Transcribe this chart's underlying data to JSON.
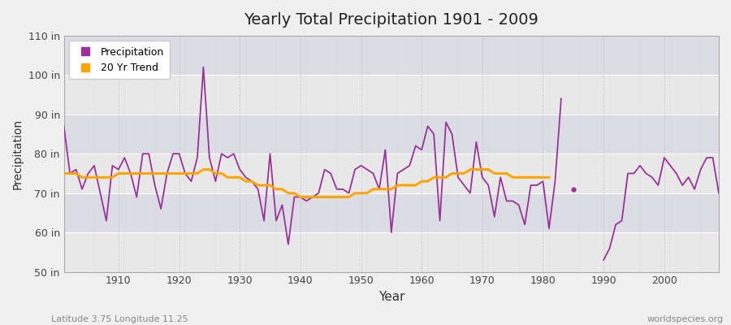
{
  "title": "Yearly Total Precipitation 1901 - 2009",
  "xlabel": "Year",
  "ylabel": "Precipitation",
  "bottom_left_label": "Latitude 3.75 Longitude 11.25",
  "bottom_right_label": "worldspecies.org",
  "years": [
    1901,
    1902,
    1903,
    1904,
    1905,
    1906,
    1907,
    1908,
    1909,
    1910,
    1911,
    1912,
    1913,
    1914,
    1915,
    1916,
    1917,
    1918,
    1919,
    1920,
    1921,
    1922,
    1923,
    1924,
    1925,
    1926,
    1927,
    1928,
    1929,
    1930,
    1931,
    1932,
    1933,
    1934,
    1935,
    1936,
    1937,
    1938,
    1939,
    1940,
    1941,
    1942,
    1943,
    1944,
    1945,
    1946,
    1947,
    1948,
    1949,
    1950,
    1951,
    1952,
    1953,
    1954,
    1955,
    1956,
    1957,
    1958,
    1959,
    1960,
    1961,
    1962,
    1963,
    1964,
    1965,
    1966,
    1967,
    1968,
    1969,
    1970,
    1971,
    1972,
    1973,
    1974,
    1975,
    1976,
    1977,
    1978,
    1979,
    1980,
    1981,
    1982,
    1983,
    1984,
    1985,
    1986,
    1987,
    1988,
    1989,
    1990,
    1991,
    1992,
    1993,
    1994,
    1995,
    1996,
    1997,
    1998,
    1999,
    2000,
    2001,
    2002,
    2003,
    2004,
    2005,
    2006,
    2007,
    2008,
    2009
  ],
  "precip": [
    87,
    75,
    76,
    71,
    75,
    77,
    70,
    63,
    77,
    76,
    79,
    75,
    69,
    80,
    80,
    72,
    66,
    75,
    80,
    80,
    75,
    73,
    79,
    102,
    79,
    73,
    80,
    79,
    80,
    76,
    74,
    73,
    71,
    63,
    80,
    63,
    67,
    57,
    69,
    69,
    68,
    69,
    70,
    76,
    75,
    71,
    71,
    70,
    76,
    77,
    76,
    75,
    71,
    81,
    60,
    75,
    76,
    77,
    82,
    81,
    87,
    85,
    63,
    88,
    85,
    74,
    72,
    70,
    83,
    74,
    72,
    64,
    74,
    68,
    68,
    67,
    62,
    72,
    72,
    73,
    61,
    73,
    94,
    null,
    null,
    null,
    null,
    null,
    null,
    53,
    56,
    62,
    63,
    75,
    75,
    77,
    75,
    74,
    72,
    79,
    77,
    75,
    72,
    74,
    71,
    76,
    79,
    79,
    70
  ],
  "single_point_year": 1985,
  "single_point_value": 71,
  "trend_years": [
    1901,
    1902,
    1903,
    1904,
    1905,
    1906,
    1907,
    1908,
    1909,
    1910,
    1911,
    1912,
    1913,
    1914,
    1915,
    1916,
    1917,
    1918,
    1919,
    1920,
    1921,
    1922,
    1923,
    1924,
    1925,
    1926,
    1927,
    1928,
    1929,
    1930,
    1931,
    1932,
    1933,
    1934,
    1935,
    1936,
    1937,
    1938,
    1939,
    1940,
    1941,
    1942,
    1943,
    1944,
    1945,
    1946,
    1947,
    1948,
    1949,
    1950,
    1951,
    1952,
    1953,
    1954,
    1955,
    1956,
    1957,
    1958,
    1959,
    1960,
    1961,
    1962,
    1963,
    1964,
    1965,
    1966,
    1967,
    1968,
    1969,
    1970,
    1971,
    1972,
    1973,
    1974,
    1975,
    1976,
    1977,
    1978,
    1979,
    1980,
    1981
  ],
  "trend": [
    75,
    75,
    75,
    74,
    74,
    74,
    74,
    74,
    74,
    75,
    75,
    75,
    75,
    75,
    75,
    75,
    75,
    75,
    75,
    75,
    75,
    75,
    75,
    76,
    76,
    75,
    75,
    74,
    74,
    74,
    73,
    73,
    72,
    72,
    72,
    71,
    71,
    70,
    70,
    69,
    69,
    69,
    69,
    69,
    69,
    69,
    69,
    69,
    70,
    70,
    70,
    71,
    71,
    71,
    71,
    72,
    72,
    72,
    72,
    73,
    73,
    74,
    74,
    74,
    75,
    75,
    75,
    76,
    76,
    76,
    76,
    75,
    75,
    75,
    74,
    74,
    74,
    74,
    74,
    74,
    74
  ],
  "precip_color": "#993399",
  "trend_color": "#FFA500",
  "bg_color": "#F0F0F0",
  "plot_bg_light": "#EBEBEB",
  "plot_bg_dark": "#E0E0E8",
  "grid_color_h": "#FFFFFF",
  "grid_color_v": "#CCCCCC",
  "ylim": [
    50,
    110
  ],
  "yticks": [
    50,
    60,
    70,
    80,
    90,
    100,
    110
  ],
  "ytick_labels": [
    "50 in",
    "60 in",
    "70 in",
    "80 in",
    "90 in",
    "100 in",
    "110 in"
  ],
  "xticks": [
    1910,
    1920,
    1930,
    1940,
    1950,
    1960,
    1970,
    1980,
    1990,
    2000
  ],
  "xlim": [
    1901,
    2009
  ]
}
